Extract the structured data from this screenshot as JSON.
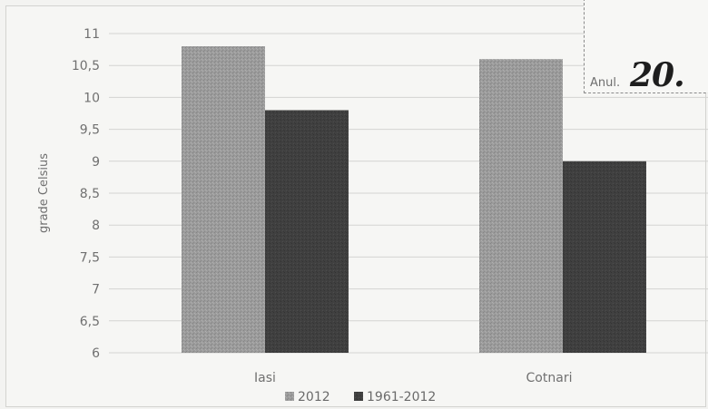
{
  "chart_data": {
    "type": "bar",
    "categories": [
      "Iasi",
      "Cotnari"
    ],
    "series": [
      {
        "name": "2012",
        "values": [
          10.8,
          10.6
        ],
        "color": "#9a9a9a"
      },
      {
        "name": "1961-2012",
        "values": [
          9.8,
          9.0
        ],
        "color": "#3e3e3e"
      }
    ],
    "ylabel": "grade Celsius",
    "ylim": [
      6,
      11
    ],
    "yticks": [
      "6",
      "6,5",
      "7",
      "7,5",
      "8",
      "8,5",
      "9",
      "9,5",
      "10",
      "10,5",
      "11"
    ],
    "ytick_values": [
      6,
      6.5,
      7,
      7.5,
      8,
      8.5,
      9,
      9.5,
      10,
      10.5,
      11
    ],
    "grid": true,
    "legend_position": "bottom"
  },
  "stamp": {
    "anul_label": "Anul.",
    "year_text": "20."
  }
}
